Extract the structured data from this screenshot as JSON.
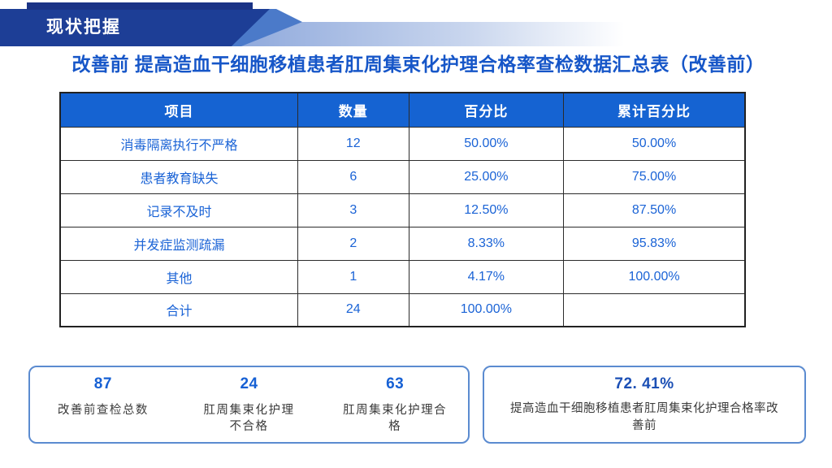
{
  "header": {
    "tab_label": "现状把握"
  },
  "title": "改善前 提高造血干细胞移植患者肛周集束化护理合格率查检数据汇总表（改善前）",
  "table": {
    "columns": [
      "项目",
      "数量",
      "百分比",
      "累计百分比"
    ],
    "rows": [
      {
        "item": "消毒隔离执行不严格",
        "count": "12",
        "percent": "50.00%",
        "cumulative": "50.00%"
      },
      {
        "item": "患者教育缺失",
        "count": "6",
        "percent": "25.00%",
        "cumulative": "75.00%"
      },
      {
        "item": "记录不及时",
        "count": "3",
        "percent": "12.50%",
        "cumulative": "87.50%"
      },
      {
        "item": "并发症监测疏漏",
        "count": "2",
        "percent": "8.33%",
        "cumulative": "95.83%"
      },
      {
        "item": "其他",
        "count": "1",
        "percent": "4.17%",
        "cumulative": "100.00%"
      },
      {
        "item": "合计",
        "count": "24",
        "percent": "100.00%",
        "cumulative": ""
      }
    ]
  },
  "stats": {
    "cards": [
      {
        "value": "87",
        "label": "改善前查检总数"
      },
      {
        "value": "24",
        "label": "肛周集束化护理\n不合格"
      },
      {
        "value": "63",
        "label": "肛周集束化护理合\n格"
      }
    ],
    "highlight": {
      "value": "72. 41%",
      "label": "提高造血干细胞移植患者肛周集束化护理合格率改\n善前"
    }
  },
  "colors": {
    "banner_navy": "#1d3e96",
    "banner_strip": "#1a3386",
    "banner_medium_blue": "#4b7ac9",
    "banner_band_start": "#8fa9dc",
    "title_blue": "#1656c8",
    "table_header_bg": "#1563d2",
    "table_text_blue": "#1a63d6",
    "stat_value_blue": "#1660d4",
    "highlight_value_blue": "#1b4fb5",
    "box_border_blue": "#5b8bd0",
    "label_gray": "#3a3a3a"
  }
}
